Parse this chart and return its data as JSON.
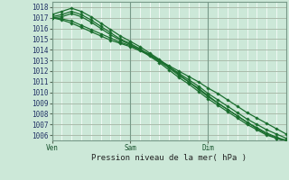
{
  "title": "",
  "xlabel": "Pression niveau de la mer( hPa )",
  "ylabel": "",
  "xlim": [
    0,
    48
  ],
  "ylim": [
    1005.5,
    1018.5
  ],
  "yticks": [
    1006,
    1007,
    1008,
    1009,
    1010,
    1011,
    1012,
    1013,
    1014,
    1015,
    1016,
    1017,
    1018
  ],
  "xtick_positions": [
    0,
    16,
    32
  ],
  "xtick_labels": [
    "Ven",
    "Sam",
    "Dim"
  ],
  "bg_color": "#cce8d8",
  "grid_major_color": "#aaccbb",
  "grid_minor_color": "#bbddcc",
  "line_color": "#1a6e2e",
  "marker_color": "#1a6e2e",
  "x_points": [
    0,
    2,
    4,
    6,
    8,
    10,
    12,
    14,
    16,
    18,
    20,
    22,
    24,
    26,
    28,
    30,
    32,
    34,
    36,
    38,
    40,
    42,
    44,
    46,
    48
  ],
  "lines": [
    [
      1017.0,
      1016.8,
      1016.5,
      1016.1,
      1015.7,
      1015.3,
      1014.9,
      1014.6,
      1014.3,
      1013.9,
      1013.5,
      1013.0,
      1012.5,
      1012.0,
      1011.5,
      1011.0,
      1010.4,
      1009.9,
      1009.3,
      1008.7,
      1008.1,
      1007.6,
      1007.1,
      1006.6,
      1006.1
    ],
    [
      1017.0,
      1016.9,
      1016.7,
      1016.3,
      1015.9,
      1015.5,
      1015.1,
      1014.7,
      1014.4,
      1014.0,
      1013.6,
      1013.0,
      1012.4,
      1011.8,
      1011.2,
      1010.6,
      1009.9,
      1009.3,
      1008.7,
      1008.1,
      1007.5,
      1007.0,
      1006.5,
      1006.1,
      1005.7
    ],
    [
      1017.3,
      1017.6,
      1017.9,
      1017.6,
      1017.1,
      1016.5,
      1015.9,
      1015.3,
      1014.8,
      1014.3,
      1013.7,
      1013.1,
      1012.4,
      1011.7,
      1011.0,
      1010.4,
      1009.7,
      1009.0,
      1008.4,
      1007.8,
      1007.2,
      1006.6,
      1006.1,
      1005.7,
      1005.4
    ],
    [
      1017.1,
      1017.3,
      1017.6,
      1017.3,
      1016.8,
      1016.2,
      1015.6,
      1015.0,
      1014.6,
      1014.1,
      1013.5,
      1012.9,
      1012.3,
      1011.6,
      1011.0,
      1010.3,
      1009.6,
      1009.0,
      1008.4,
      1007.8,
      1007.2,
      1006.7,
      1006.2,
      1005.8,
      1005.5
    ],
    [
      1017.0,
      1017.1,
      1017.4,
      1017.1,
      1016.6,
      1016.0,
      1015.4,
      1014.9,
      1014.5,
      1014.0,
      1013.4,
      1012.8,
      1012.1,
      1011.4,
      1010.8,
      1010.1,
      1009.4,
      1008.8,
      1008.2,
      1007.6,
      1007.0,
      1006.5,
      1006.0,
      1005.7,
      1005.5
    ]
  ]
}
